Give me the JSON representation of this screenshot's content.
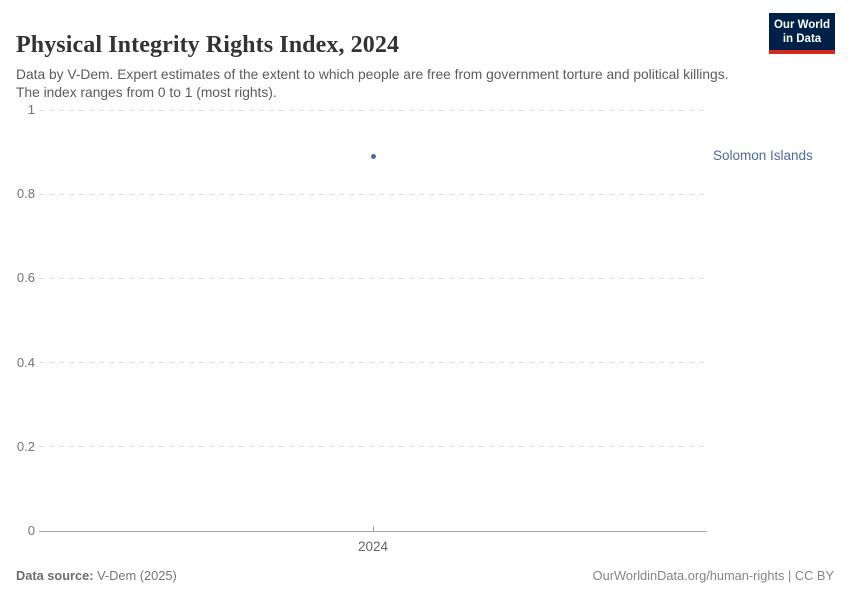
{
  "header": {
    "title": "Physical Integrity Rights Index, 2024",
    "subtitle": "Data by V-Dem. Expert estimates of the extent to which people are free from government torture and political killings. The index ranges from 0 to 1 (most rights).",
    "logo": {
      "line1": "Our World",
      "line2": "in Data"
    }
  },
  "chart_data": {
    "type": "scatter",
    "title": "Physical Integrity Rights Index, 2024",
    "x": [
      2024
    ],
    "xtick_labels": [
      "2024"
    ],
    "series": [
      {
        "name": "Solomon Islands",
        "values": [
          0.89
        ]
      }
    ],
    "ylim": [
      0,
      1
    ],
    "yticks": [
      0,
      0.2,
      0.4,
      0.6,
      0.8,
      1
    ],
    "ytick_labels": [
      "0",
      "0.2",
      "0.4",
      "0.6",
      "0.8",
      "1"
    ],
    "grid": true,
    "legend_position": "right-of-point",
    "point_color": "#4c6a9c",
    "entity_label_color": "#4c6a9c"
  },
  "footer": {
    "source_label": "Data source:",
    "source_value": " V-Dem (2025)",
    "attribution": "OurWorldinData.org/human-rights | CC BY"
  },
  "colors": {
    "logo_background": "#002147",
    "logo_stripe": "#d42b21",
    "gridline": "#dcdcdc",
    "axis": "#a3a3a3",
    "accent_blue": "#4c6a9c"
  }
}
